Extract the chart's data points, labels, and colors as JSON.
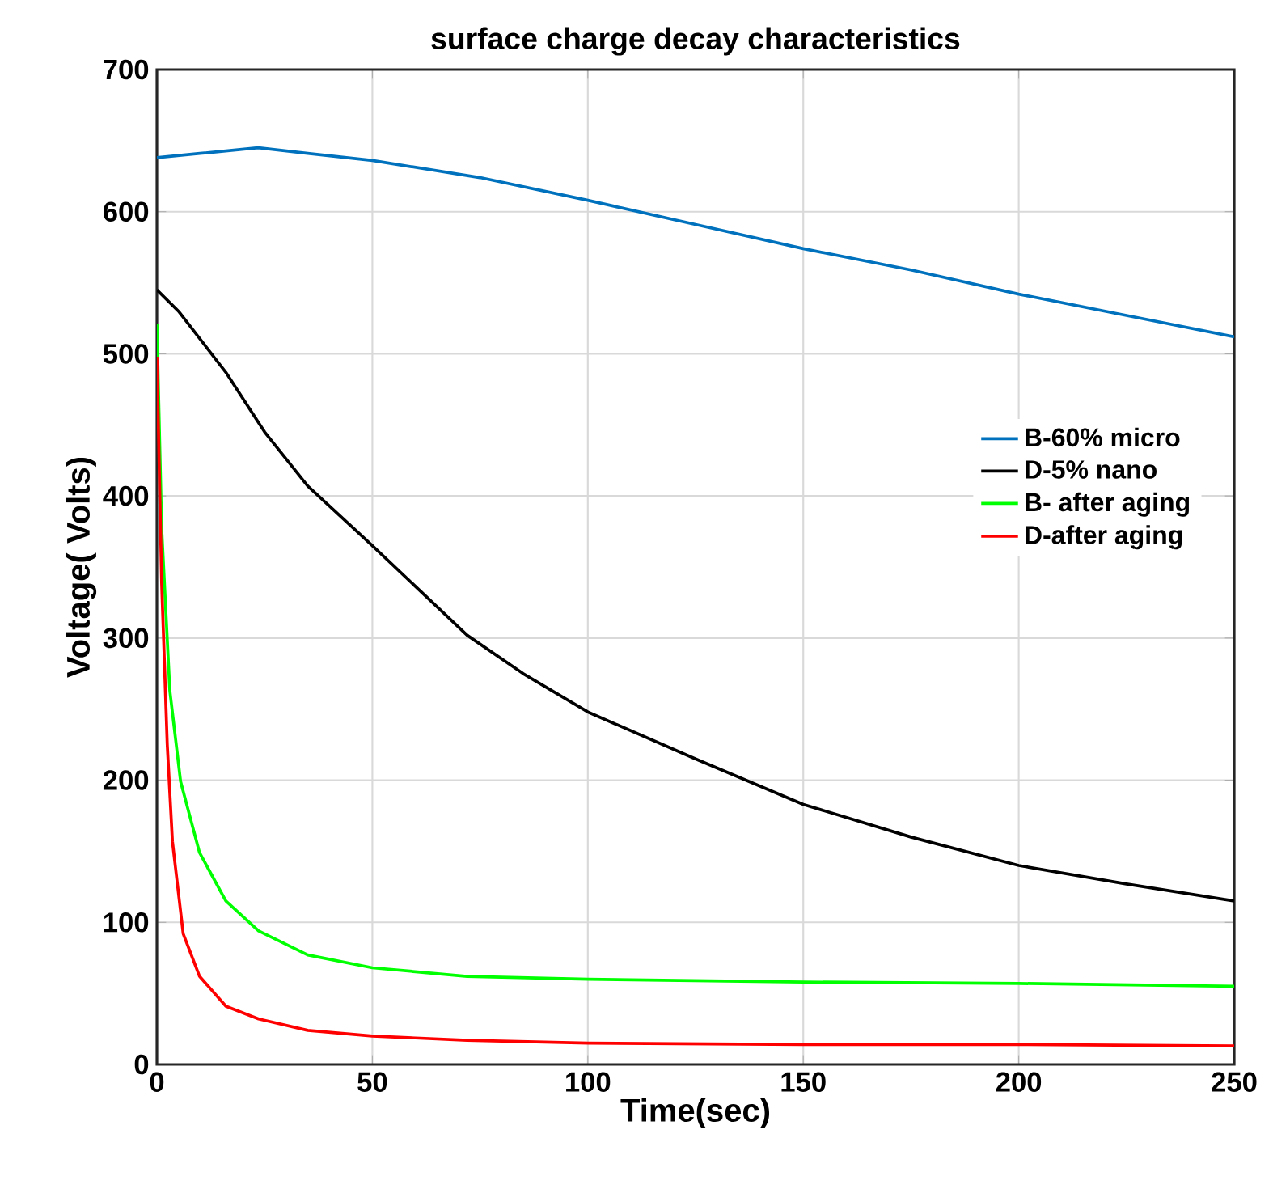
{
  "chart_data": {
    "type": "line",
    "title": "surface charge decay characteristics",
    "xlabel": "Time(sec)",
    "ylabel": "Voltage( Volts)",
    "xlim": [
      0,
      250
    ],
    "ylim": [
      0,
      700
    ],
    "xticks": [
      0,
      50,
      100,
      150,
      200,
      250
    ],
    "yticks": [
      0,
      100,
      200,
      300,
      400,
      500,
      600,
      700
    ],
    "grid": true,
    "legend": "right",
    "series": [
      {
        "name": "B-60% micro",
        "color": "#0072bd",
        "x": [
          0,
          10,
          23.5,
          35,
          50,
          75,
          100,
          125,
          150,
          175,
          200,
          225,
          250
        ],
        "values": [
          638,
          641,
          645,
          641,
          636,
          624,
          608,
          591,
          574,
          559,
          542,
          527,
          512
        ]
      },
      {
        "name": "D-5% nano",
        "color": "#000000",
        "x": [
          0,
          5,
          16,
          25,
          35,
          50,
          72,
          85,
          100,
          125,
          150,
          175,
          200,
          225,
          250
        ],
        "values": [
          545,
          530,
          487,
          445,
          407,
          365,
          302,
          275,
          248,
          215,
          183,
          160,
          140,
          127,
          115
        ]
      },
      {
        "name": "B- after aging",
        "color": "#00ff00",
        "x": [
          0,
          1.1,
          3,
          5.5,
          9.9,
          16,
          23.6,
          35,
          50,
          72,
          100,
          150,
          200,
          250
        ],
        "values": [
          521,
          377,
          263,
          199,
          149,
          115,
          94,
          77,
          68,
          62,
          60,
          58,
          57,
          55
        ]
      },
      {
        "name": "D-after aging",
        "color": "#ff0000",
        "x": [
          0,
          1.1,
          2.4,
          3.6,
          6.1,
          9.9,
          16,
          23.6,
          35,
          50,
          72,
          100,
          150,
          200,
          250
        ],
        "values": [
          498,
          339,
          225,
          157,
          92,
          62,
          41,
          32,
          24,
          20,
          17,
          15,
          14,
          14,
          13
        ]
      }
    ]
  }
}
